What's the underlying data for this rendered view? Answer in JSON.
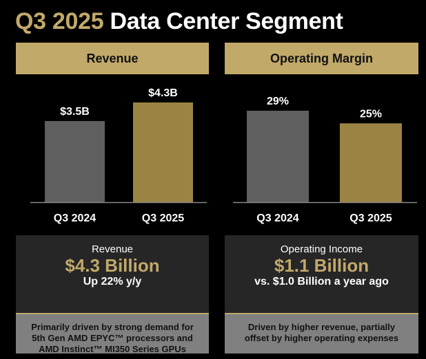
{
  "title": {
    "accent": "Q3 2025",
    "rest": "Data Center Segment"
  },
  "colors": {
    "gold": "#c1a96a",
    "gold_bar": "#9b8443",
    "gray_bar": "#5f5f5f"
  },
  "chart_data": [
    {
      "type": "bar",
      "title": "Revenue",
      "categories": [
        "Q3 2024",
        "Q3 2025"
      ],
      "values": [
        3.5,
        4.3
      ],
      "data_labels": [
        "$3.5B",
        "$4.3B"
      ],
      "unit": "$B",
      "colors": [
        "#5f5f5f",
        "#9b8443"
      ]
    },
    {
      "type": "bar",
      "title": "Operating Margin",
      "categories": [
        "Q3 2024",
        "Q3 2025"
      ],
      "values": [
        29,
        25
      ],
      "data_labels": [
        "29%",
        "25%"
      ],
      "unit": "%",
      "colors": [
        "#5f5f5f",
        "#9b8443"
      ]
    }
  ],
  "boxes": [
    {
      "label": "Revenue",
      "big": "$4.3 Billion",
      "sub": "Up 22% y/y",
      "note": [
        "Primarily driven by strong demand for",
        "5th Gen AMD EPYC™ processors and",
        "AMD Instinct™ MI350 Series GPUs"
      ]
    },
    {
      "label": "Operating Income",
      "big": "$1.1 Billion",
      "sub": "vs. $1.0 Billion a year ago",
      "note": [
        "Driven by higher revenue, partially",
        "offset by higher operating expenses"
      ]
    }
  ]
}
